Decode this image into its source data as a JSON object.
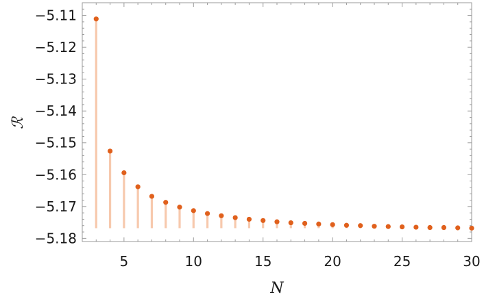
{
  "chart_data": {
    "type": "scatter",
    "style": "stem",
    "title": "",
    "xlabel": "N",
    "ylabel": "ℛ",
    "xlim": [
      2,
      30
    ],
    "ylim": [
      -5.181,
      -5.106
    ],
    "xticks": [
      5,
      10,
      15,
      20,
      25,
      30
    ],
    "yticks": [
      -5.11,
      -5.12,
      -5.13,
      -5.14,
      -5.15,
      -5.16,
      -5.17,
      -5.18
    ],
    "stem_base": -5.1768,
    "grid": false,
    "legend": "none",
    "colors": {
      "point": "#e0601c",
      "stem": "#f7c9ad",
      "frame": "#999999"
    },
    "x": [
      3,
      4,
      5,
      6,
      7,
      8,
      9,
      10,
      11,
      12,
      13,
      14,
      15,
      16,
      17,
      18,
      19,
      20,
      21,
      22,
      23,
      24,
      25,
      26,
      27,
      28,
      29,
      30
    ],
    "y": [
      -5.1111,
      -5.1526,
      -5.1594,
      -5.1638,
      -5.1668,
      -5.1687,
      -5.1702,
      -5.1713,
      -5.1722,
      -5.1729,
      -5.1735,
      -5.174,
      -5.1744,
      -5.1748,
      -5.1751,
      -5.1753,
      -5.1755,
      -5.1757,
      -5.1759,
      -5.176,
      -5.1762,
      -5.1763,
      -5.1764,
      -5.1765,
      -5.1766,
      -5.1766,
      -5.1767,
      -5.1768
    ]
  }
}
